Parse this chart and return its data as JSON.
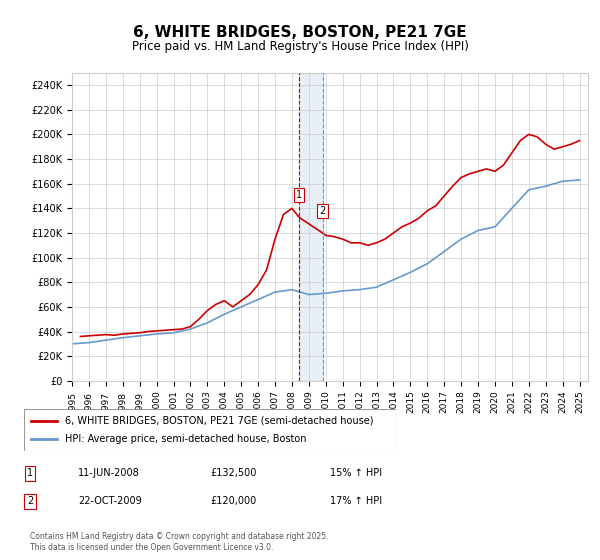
{
  "title": "6, WHITE BRIDGES, BOSTON, PE21 7GE",
  "subtitle": "Price paid vs. HM Land Registry's House Price Index (HPI)",
  "ylabel_ticks": [
    "£0",
    "£20K",
    "£40K",
    "£60K",
    "£80K",
    "£100K",
    "£120K",
    "£140K",
    "£160K",
    "£180K",
    "£200K",
    "£220K",
    "£240K"
  ],
  "ylim": [
    0,
    250000
  ],
  "xlim_start": 1995.0,
  "xlim_end": 2025.5,
  "transaction1_date": 2008.44,
  "transaction2_date": 2009.81,
  "transaction1_label": "1",
  "transaction2_label": "2",
  "transaction1_price": 132500,
  "transaction2_price": 120000,
  "legend_red": "6, WHITE BRIDGES, BOSTON, PE21 7GE (semi-detached house)",
  "legend_blue": "HPI: Average price, semi-detached house, Boston",
  "table_row1": [
    "1",
    "11-JUN-2008",
    "£132,500",
    "15% ↑ HPI"
  ],
  "table_row2": [
    "2",
    "22-OCT-2009",
    "£120,000",
    "17% ↑ HPI"
  ],
  "footer": "Contains HM Land Registry data © Crown copyright and database right 2025.\nThis data is licensed under the Open Government Licence v3.0.",
  "red_color": "#cc0000",
  "blue_color": "#6699cc",
  "grid_color": "#cccccc",
  "bg_color": "#ffffff",
  "years": [
    1995,
    1996,
    1997,
    1998,
    1999,
    2000,
    2001,
    2002,
    2003,
    2004,
    2005,
    2006,
    2007,
    2008,
    2009,
    2010,
    2011,
    2012,
    2013,
    2014,
    2015,
    2016,
    2017,
    2018,
    2019,
    2020,
    2021,
    2022,
    2023,
    2024,
    2025
  ],
  "hpi_values": [
    30000,
    31000,
    33000,
    35000,
    36500,
    38000,
    39000,
    42000,
    47000,
    54000,
    60000,
    66000,
    72000,
    74000,
    70000,
    71000,
    73000,
    74000,
    76000,
    82000,
    88000,
    95000,
    105000,
    115000,
    122000,
    125000,
    140000,
    155000,
    158000,
    162000,
    163000
  ],
  "red_price_years": [
    1995.5,
    1996.0,
    1996.5,
    1997.0,
    1997.5,
    1998.0,
    1998.5,
    1999.0,
    1999.5,
    2000.0,
    2000.5,
    2001.0,
    2001.5,
    2002.0,
    2002.5,
    2003.0,
    2003.5,
    2004.0,
    2004.5,
    2005.0,
    2005.5,
    2006.0,
    2006.5,
    2007.0,
    2007.5,
    2008.0,
    2008.44,
    2009.81,
    2010.0,
    2010.5,
    2011.0,
    2011.5,
    2012.0,
    2012.5,
    2013.0,
    2013.5,
    2014.0,
    2014.5,
    2015.0,
    2015.5,
    2016.0,
    2016.5,
    2017.0,
    2017.5,
    2018.0,
    2018.5,
    2019.0,
    2019.5,
    2020.0,
    2020.5,
    2021.0,
    2021.5,
    2022.0,
    2022.5,
    2023.0,
    2023.5,
    2024.0,
    2024.5,
    2025.0
  ],
  "red_price_values": [
    36000,
    36500,
    37000,
    37500,
    37000,
    38000,
    38500,
    39000,
    40000,
    40500,
    41000,
    41500,
    42000,
    44000,
    50000,
    57000,
    62000,
    65000,
    60000,
    65000,
    70000,
    78000,
    90000,
    115000,
    135000,
    140000,
    132500,
    120000,
    118000,
    117000,
    115000,
    112000,
    112000,
    110000,
    112000,
    115000,
    120000,
    125000,
    128000,
    132000,
    138000,
    142000,
    150000,
    158000,
    165000,
    168000,
    170000,
    172000,
    170000,
    175000,
    185000,
    195000,
    200000,
    198000,
    192000,
    188000,
    190000,
    192000,
    195000
  ]
}
